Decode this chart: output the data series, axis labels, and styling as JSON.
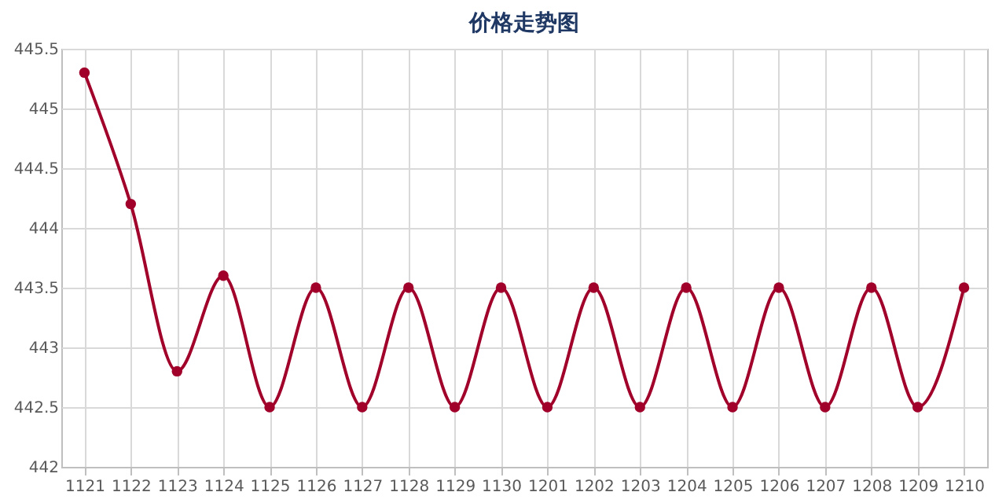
{
  "chart_data": {
    "type": "line",
    "title": "价格走势图",
    "categories": [
      "1121",
      "1122",
      "1123",
      "1124",
      "1125",
      "1126",
      "1127",
      "1128",
      "1129",
      "1130",
      "1201",
      "1202",
      "1203",
      "1204",
      "1205",
      "1206",
      "1207",
      "1208",
      "1209",
      "1210"
    ],
    "series": [
      {
        "color": "#a0002a",
        "values": [
          445.3,
          444.2,
          442.8,
          443.6,
          442.5,
          443.5,
          442.5,
          443.5,
          442.5,
          443.5,
          442.5,
          443.5,
          442.5,
          443.5,
          442.5,
          443.5,
          442.5,
          443.5,
          442.5,
          443.5
        ]
      }
    ],
    "ylim": [
      442,
      445.5
    ],
    "yticks": [
      442,
      442.5,
      443,
      443.5,
      444,
      444.5,
      445,
      445.5
    ],
    "grid": true,
    "marker": "circle"
  }
}
